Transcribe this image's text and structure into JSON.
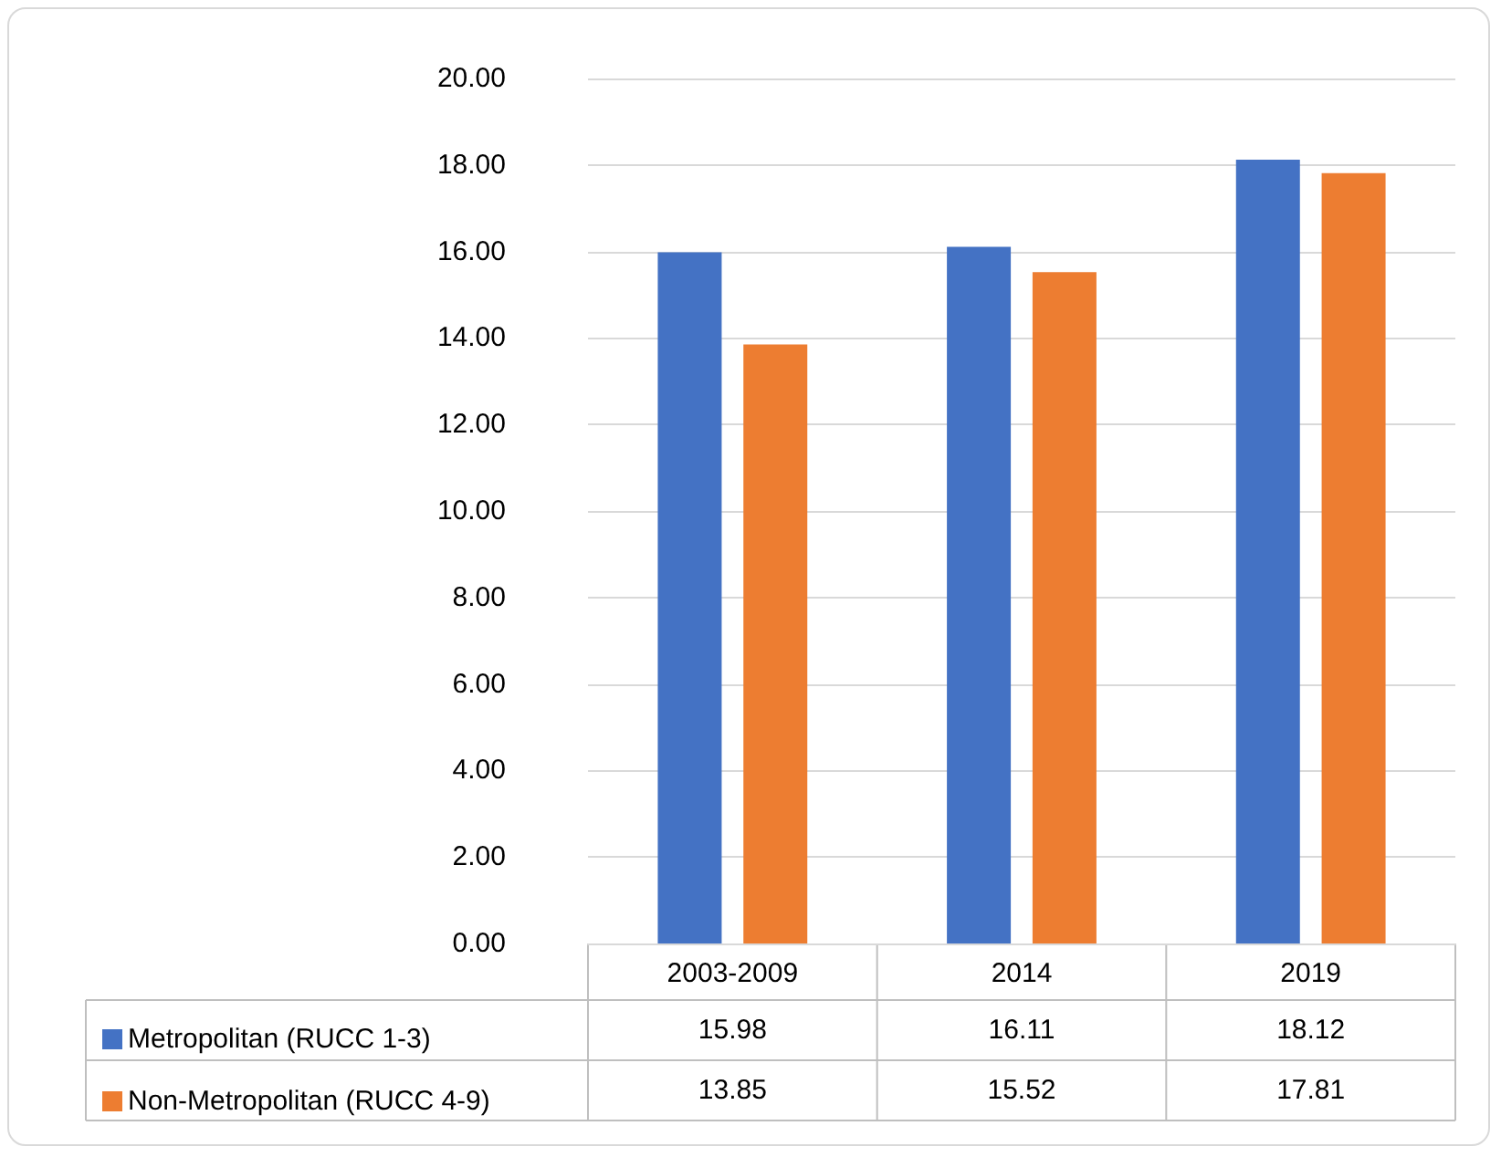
{
  "chart_data": {
    "type": "bar",
    "categories": [
      "2003-2009",
      "2014",
      "2019"
    ],
    "series": [
      {
        "name": "Metropolitan (RUCC 1-3)",
        "color": "#4472c4",
        "values": [
          15.98,
          16.11,
          18.12
        ]
      },
      {
        "name": "Non-Metropolitan (RUCC 4-9)",
        "color": "#ed7d31",
        "values": [
          13.85,
          15.52,
          17.81
        ]
      }
    ],
    "ylim": [
      0,
      20
    ],
    "yticks": [
      {
        "value": 0,
        "label": "0.00"
      },
      {
        "value": 2,
        "label": "2.00"
      },
      {
        "value": 4,
        "label": "4.00"
      },
      {
        "value": 6,
        "label": "6.00"
      },
      {
        "value": 8,
        "label": "8.00"
      },
      {
        "value": 10,
        "label": "10.00"
      },
      {
        "value": 12,
        "label": "12.00"
      },
      {
        "value": 14,
        "label": "14.00"
      },
      {
        "value": 16,
        "label": "16.00"
      },
      {
        "value": 18,
        "label": "18.00"
      },
      {
        "value": 20,
        "label": "20.00"
      }
    ],
    "grid": "y",
    "legend": "bottom",
    "data_labels": true
  }
}
